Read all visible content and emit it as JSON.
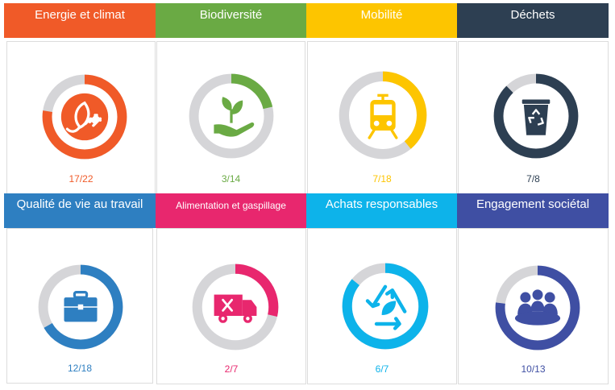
{
  "rings_track_color": "#d5d5d8",
  "categories": [
    {
      "title": "Energie et climat",
      "color": "#f05a28",
      "label_color": "#f05a28",
      "done": 17,
      "total": 22,
      "score_label": "17/22",
      "icon": "leaf-plug-icon"
    },
    {
      "title": "Biodiversité",
      "color": "#6aaa44",
      "label_color": "#6aaa44",
      "done": 3,
      "total": 14,
      "score_label": "3/14",
      "icon": "plant-in-hand-icon"
    },
    {
      "title": "Mobilité",
      "color": "#fdc500",
      "label_color": "#fdc500",
      "done": 7,
      "total": 18,
      "score_label": "7/18",
      "icon": "tram-icon"
    },
    {
      "title": "Déchets",
      "color": "#2d3f52",
      "label_color": "#2d3f52",
      "done": 7,
      "total": 8,
      "score_label": "7/8",
      "icon": "recycle-bin-icon"
    },
    {
      "title": "Qualité de vie au travail",
      "color": "#2e7fc1",
      "label_color": "#2e7fc1",
      "done": 12,
      "total": 18,
      "score_label": "12/18",
      "icon": "briefcase-icon"
    },
    {
      "title": "Alimentation et gaspillage",
      "color": "#e8276e",
      "label_color": "#e8276e",
      "done": 2,
      "total": 7,
      "score_label": "2/7",
      "icon": "food-truck-icon"
    },
    {
      "title": "Achats responsables",
      "color": "#0db3ea",
      "label_color": "#0db3ea",
      "done": 6,
      "total": 7,
      "score_label": "6/7",
      "icon": "recycle-leaf-icon"
    },
    {
      "title": "Engagement sociétal",
      "color": "#3f4fa3",
      "label_color": "#3f4fa3",
      "done": 10,
      "total": 13,
      "score_label": "10/13",
      "icon": "meeting-group-icon"
    }
  ]
}
